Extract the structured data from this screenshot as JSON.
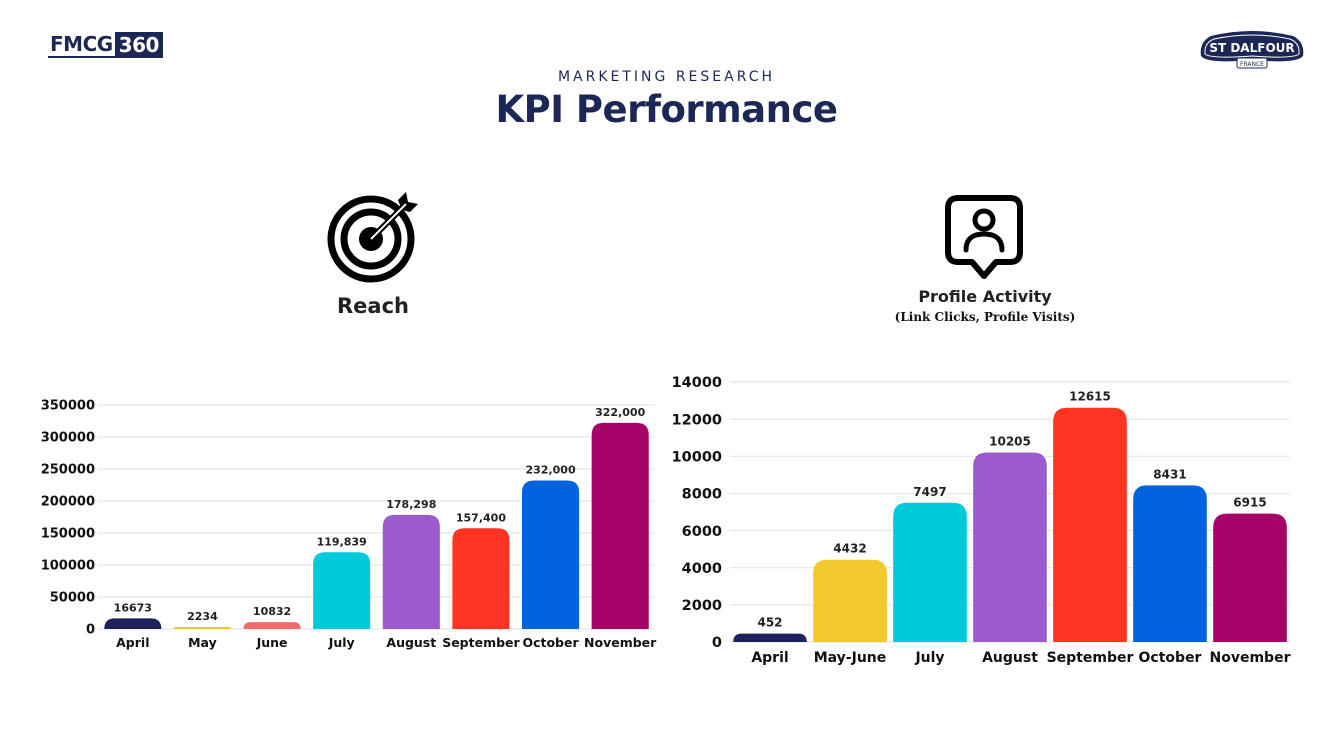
{
  "header": {
    "brand_left_part1": "FMCG",
    "brand_left_part2": "360",
    "brand_right_main": "ST DALFOUR",
    "brand_right_sub": "FRANCE",
    "eyebrow": "MARKETING RESEARCH",
    "title": "KPI Performance"
  },
  "sections": {
    "reach": {
      "label": "Reach",
      "icon": "target-icon"
    },
    "profile": {
      "label": "Profile Activity",
      "sublabel": "(Link Clicks, Profile Visits)",
      "icon": "profile-pin-icon"
    }
  },
  "chart_data": [
    {
      "type": "bar",
      "title": "Reach",
      "categories": [
        "April",
        "May",
        "June",
        "July",
        "August",
        "September",
        "October",
        "November"
      ],
      "values": [
        16673,
        2234,
        10832,
        119839,
        178298,
        157400,
        232000,
        322000
      ],
      "data_labels": [
        "16673",
        "2234",
        "10832",
        "119,839",
        "178,298",
        "157,400",
        "232,000",
        "322,000"
      ],
      "colors": [
        "#1f2259",
        "#f2c52a",
        "#f26b6b",
        "#00c9dc",
        "#9b5acd",
        "#ff3422",
        "#0062dd",
        "#a50366"
      ],
      "yticks": [
        0,
        50000,
        100000,
        150000,
        200000,
        250000,
        300000,
        350000
      ],
      "ylim": [
        0,
        350000
      ],
      "grid": true,
      "legend": "none"
    },
    {
      "type": "bar",
      "title": "Profile Activity",
      "categories": [
        "April",
        "May-June",
        "July",
        "August",
        "September",
        "October",
        "November"
      ],
      "values": [
        452,
        4432,
        7497,
        10205,
        12615,
        8431,
        6915
      ],
      "data_labels": [
        "452",
        "4432",
        "7497",
        "10205",
        "12615",
        "8431",
        "6915"
      ],
      "colors": [
        "#1f2259",
        "#f2c92a",
        "#00c9dc",
        "#9b5acd",
        "#ff3422",
        "#0062dd",
        "#a50366"
      ],
      "yticks": [
        0,
        2000,
        4000,
        6000,
        8000,
        10000,
        12000,
        14000
      ],
      "ylim": [
        0,
        14000
      ],
      "grid": true,
      "legend": "none"
    }
  ]
}
